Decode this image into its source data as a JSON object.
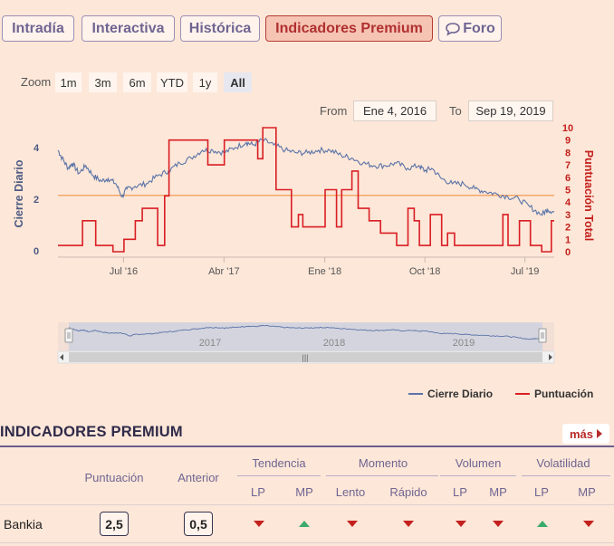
{
  "tabs": [
    {
      "label": "Intradía",
      "active": false
    },
    {
      "label": "Interactiva",
      "active": false
    },
    {
      "label": "Histórica",
      "active": false
    },
    {
      "label": "Indicadores Premium",
      "active": true
    },
    {
      "label": "Foro",
      "active": false,
      "icon": "chat-bubble-icon"
    }
  ],
  "zoom": {
    "label": "Zoom",
    "buttons": [
      "1m",
      "3m",
      "6m",
      "YTD",
      "1y",
      "All"
    ],
    "selected": "All"
  },
  "range": {
    "from_label": "From",
    "from_value": "Ene 4, 2016",
    "to_label": "To",
    "to_value": "Sep 19, 2019"
  },
  "chart_data": {
    "type": "line",
    "x_ticks": [
      "Jul '16",
      "Abr '17",
      "Ene '18",
      "Oct '18",
      "Jul '19"
    ],
    "y_left": {
      "label": "Cierre Diario",
      "ticks": [
        "0",
        "2",
        "4"
      ],
      "range": [
        0,
        5
      ]
    },
    "y_right": {
      "label": "Puntuación Total",
      "ticks": [
        "0",
        "1",
        "2",
        "3",
        "4",
        "5",
        "6",
        "7",
        "8",
        "9",
        "10"
      ],
      "range": [
        0,
        10
      ]
    },
    "reference_line": {
      "axis": "left",
      "value": 2.15,
      "color": "#f2a86a"
    },
    "series": [
      {
        "name": "Cierre Diario",
        "axis": "left",
        "color": "#5b74a8",
        "points": [
          [
            "2016-01-04",
            3.9
          ],
          [
            "2016-01-15",
            3.6
          ],
          [
            "2016-02-01",
            3.2
          ],
          [
            "2016-02-12",
            3.4
          ],
          [
            "2016-03-01",
            3.0
          ],
          [
            "2016-03-20",
            3.3
          ],
          [
            "2016-04-10",
            2.9
          ],
          [
            "2016-05-01",
            2.7
          ],
          [
            "2016-05-20",
            2.8
          ],
          [
            "2016-06-10",
            2.6
          ],
          [
            "2016-06-27",
            2.1
          ],
          [
            "2016-07-10",
            2.4
          ],
          [
            "2016-08-01",
            2.5
          ],
          [
            "2016-09-01",
            2.6
          ],
          [
            "2016-10-01",
            2.9
          ],
          [
            "2016-11-01",
            3.1
          ],
          [
            "2016-12-01",
            3.4
          ],
          [
            "2017-01-01",
            3.6
          ],
          [
            "2017-02-01",
            3.9
          ],
          [
            "2017-03-01",
            3.9
          ],
          [
            "2017-04-01",
            3.8
          ],
          [
            "2017-05-01",
            4.0
          ],
          [
            "2017-06-01",
            4.2
          ],
          [
            "2017-06-20",
            4.1
          ],
          [
            "2017-07-15",
            4.3
          ],
          [
            "2017-08-15",
            4.1
          ],
          [
            "2017-09-15",
            3.9
          ],
          [
            "2017-10-15",
            3.8
          ],
          [
            "2017-11-15",
            3.8
          ],
          [
            "2017-12-15",
            3.9
          ],
          [
            "2018-01-15",
            3.9
          ],
          [
            "2018-02-15",
            3.7
          ],
          [
            "2018-03-15",
            3.6
          ],
          [
            "2018-04-15",
            3.4
          ],
          [
            "2018-05-15",
            3.3
          ],
          [
            "2018-06-15",
            3.3
          ],
          [
            "2018-07-15",
            3.4
          ],
          [
            "2018-08-15",
            3.2
          ],
          [
            "2018-09-15",
            3.3
          ],
          [
            "2018-10-01",
            3.1
          ],
          [
            "2018-10-20",
            3.2
          ],
          [
            "2018-11-15",
            2.8
          ],
          [
            "2018-12-15",
            2.6
          ],
          [
            "2019-01-15",
            2.6
          ],
          [
            "2019-02-15",
            2.4
          ],
          [
            "2019-03-15",
            2.3
          ],
          [
            "2019-04-15",
            2.2
          ],
          [
            "2019-05-15",
            2.1
          ],
          [
            "2019-06-15",
            2.0
          ],
          [
            "2019-07-15",
            1.7
          ],
          [
            "2019-08-15",
            1.4
          ],
          [
            "2019-09-01",
            1.6
          ],
          [
            "2019-09-19",
            1.5
          ]
        ]
      },
      {
        "name": "Puntuación",
        "axis": "right",
        "color": "#d91e24",
        "step": true,
        "points": [
          [
            "2016-01-04",
            0.5
          ],
          [
            "2016-03-10",
            0.5
          ],
          [
            "2016-03-11",
            2.5
          ],
          [
            "2016-04-15",
            2.5
          ],
          [
            "2016-04-16",
            0.5
          ],
          [
            "2016-06-01",
            0.5
          ],
          [
            "2016-06-02",
            0.0
          ],
          [
            "2016-07-01",
            0.0
          ],
          [
            "2016-07-02",
            1.0
          ],
          [
            "2016-08-01",
            1.0
          ],
          [
            "2016-08-02",
            2.5
          ],
          [
            "2016-08-20",
            2.5
          ],
          [
            "2016-08-21",
            3.5
          ],
          [
            "2016-10-01",
            3.5
          ],
          [
            "2016-10-02",
            0.5
          ],
          [
            "2016-10-20",
            0.5
          ],
          [
            "2016-10-21",
            4.5
          ],
          [
            "2016-11-01",
            4.5
          ],
          [
            "2016-11-02",
            9.0
          ],
          [
            "2017-02-15",
            9.0
          ],
          [
            "2017-02-16",
            7.0
          ],
          [
            "2017-04-01",
            7.0
          ],
          [
            "2017-04-02",
            9.0
          ],
          [
            "2017-07-01",
            9.0
          ],
          [
            "2017-07-02",
            7.5
          ],
          [
            "2017-07-15",
            7.5
          ],
          [
            "2017-07-16",
            10.0
          ],
          [
            "2017-08-20",
            10.0
          ],
          [
            "2017-08-21",
            5.0
          ],
          [
            "2017-10-01",
            5.0
          ],
          [
            "2017-10-02",
            2.0
          ],
          [
            "2017-10-20",
            2.0
          ],
          [
            "2017-10-21",
            3.0
          ],
          [
            "2017-11-01",
            3.0
          ],
          [
            "2017-11-02",
            2.0
          ],
          [
            "2018-01-01",
            2.0
          ],
          [
            "2018-01-02",
            5.0
          ],
          [
            "2018-02-01",
            5.0
          ],
          [
            "2018-02-02",
            2.0
          ],
          [
            "2018-02-15",
            2.0
          ],
          [
            "2018-02-16",
            5.0
          ],
          [
            "2018-03-15",
            5.0
          ],
          [
            "2018-03-16",
            6.5
          ],
          [
            "2018-04-01",
            6.5
          ],
          [
            "2018-04-02",
            3.5
          ],
          [
            "2018-05-01",
            3.5
          ],
          [
            "2018-05-02",
            2.5
          ],
          [
            "2018-06-01",
            2.5
          ],
          [
            "2018-06-02",
            1.5
          ],
          [
            "2018-07-15",
            1.5
          ],
          [
            "2018-07-16",
            0.5
          ],
          [
            "2018-08-15",
            0.5
          ],
          [
            "2018-08-16",
            3.5
          ],
          [
            "2018-09-01",
            3.5
          ],
          [
            "2018-09-02",
            2.5
          ],
          [
            "2018-09-15",
            2.5
          ],
          [
            "2018-09-16",
            0.5
          ],
          [
            "2018-10-15",
            0.5
          ],
          [
            "2018-10-16",
            3.0
          ],
          [
            "2018-11-15",
            3.0
          ],
          [
            "2018-11-16",
            0.5
          ],
          [
            "2018-12-01",
            0.5
          ],
          [
            "2018-12-02",
            1.5
          ],
          [
            "2018-12-20",
            1.5
          ],
          [
            "2018-12-21",
            0.5
          ],
          [
            "2019-05-01",
            0.5
          ],
          [
            "2019-05-02",
            3.0
          ],
          [
            "2019-05-15",
            3.0
          ],
          [
            "2019-05-16",
            0.5
          ],
          [
            "2019-06-15",
            0.5
          ],
          [
            "2019-06-16",
            2.5
          ],
          [
            "2019-07-15",
            2.5
          ],
          [
            "2019-07-16",
            0.5
          ],
          [
            "2019-08-15",
            0.5
          ],
          [
            "2019-08-16",
            0.0
          ],
          [
            "2019-09-10",
            0.0
          ],
          [
            "2019-09-11",
            2.5
          ],
          [
            "2019-09-19",
            2.5
          ]
        ]
      }
    ],
    "legend": {
      "position": "bottom-right"
    },
    "navigator": {
      "labels": [
        "2017",
        "2018",
        "2019"
      ]
    }
  },
  "premium": {
    "title": "INDICADORES PREMIUM",
    "more_label": "más",
    "headers": {
      "puntuacion": "Puntuación",
      "anterior": "Anterior",
      "groups": [
        {
          "label": "Tendencia",
          "subs": [
            "LP",
            "MP"
          ]
        },
        {
          "label": "Momento",
          "subs": [
            "Lento",
            "Rápido"
          ]
        },
        {
          "label": "Volumen",
          "subs": [
            "LP",
            "MP"
          ]
        },
        {
          "label": "Volatilidad",
          "subs": [
            "LP",
            "MP"
          ]
        }
      ]
    },
    "rows": [
      {
        "name": "Bankia",
        "puntuacion": "2,5",
        "anterior": "0,5",
        "signals": [
          "down",
          "up",
          "down",
          "down",
          "down",
          "down",
          "up",
          "down"
        ]
      }
    ]
  }
}
